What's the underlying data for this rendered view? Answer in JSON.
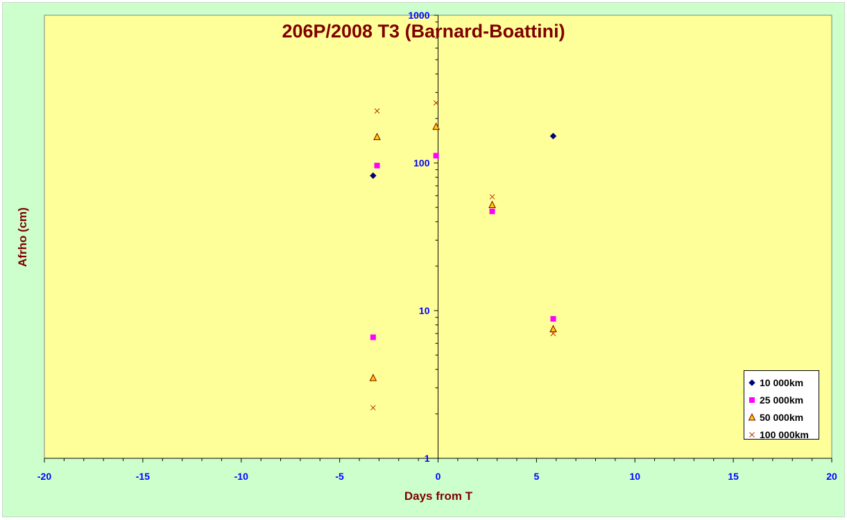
{
  "chart_data": {
    "type": "scatter",
    "title": "206P/2008 T3 (Barnard-Boattini)",
    "xlabel": "Days from T",
    "ylabel": "Afrho (cm)",
    "xlim": [
      -20,
      20
    ],
    "ylim": [
      1,
      1000
    ],
    "yscale": "log",
    "xticks": [
      -20,
      -15,
      -10,
      -5,
      0,
      5,
      10,
      15,
      20
    ],
    "yticks": [
      1,
      10,
      100,
      1000
    ],
    "grid": false,
    "plot_background": "#ffff99",
    "chart_background": "#ccffcc",
    "legend_position": "bottom-right",
    "series": [
      {
        "name": "10 000km",
        "marker": "diamond",
        "color": "#000080",
        "points": [
          [
            -3.3,
            82
          ],
          [
            5.85,
            152
          ]
        ]
      },
      {
        "name": "25 000km",
        "marker": "square",
        "color": "#ff00ff",
        "points": [
          [
            -3.3,
            6.6
          ],
          [
            -3.1,
            96
          ],
          [
            -0.1,
            112
          ],
          [
            2.75,
            47
          ],
          [
            5.85,
            8.8
          ]
        ]
      },
      {
        "name": "50 000km",
        "marker": "triangle",
        "color": "#ffcc00",
        "stroke": "#7f0000",
        "points": [
          [
            -3.3,
            3.5
          ],
          [
            -3.1,
            150
          ],
          [
            -0.1,
            176
          ],
          [
            2.75,
            52
          ],
          [
            5.85,
            7.5
          ]
        ]
      },
      {
        "name": "100 000km",
        "marker": "x",
        "color": "#b03000",
        "points": [
          [
            -3.3,
            2.2
          ],
          [
            -3.1,
            225
          ],
          [
            -0.1,
            255
          ],
          [
            2.75,
            59
          ],
          [
            5.85,
            7.0
          ]
        ]
      }
    ]
  }
}
